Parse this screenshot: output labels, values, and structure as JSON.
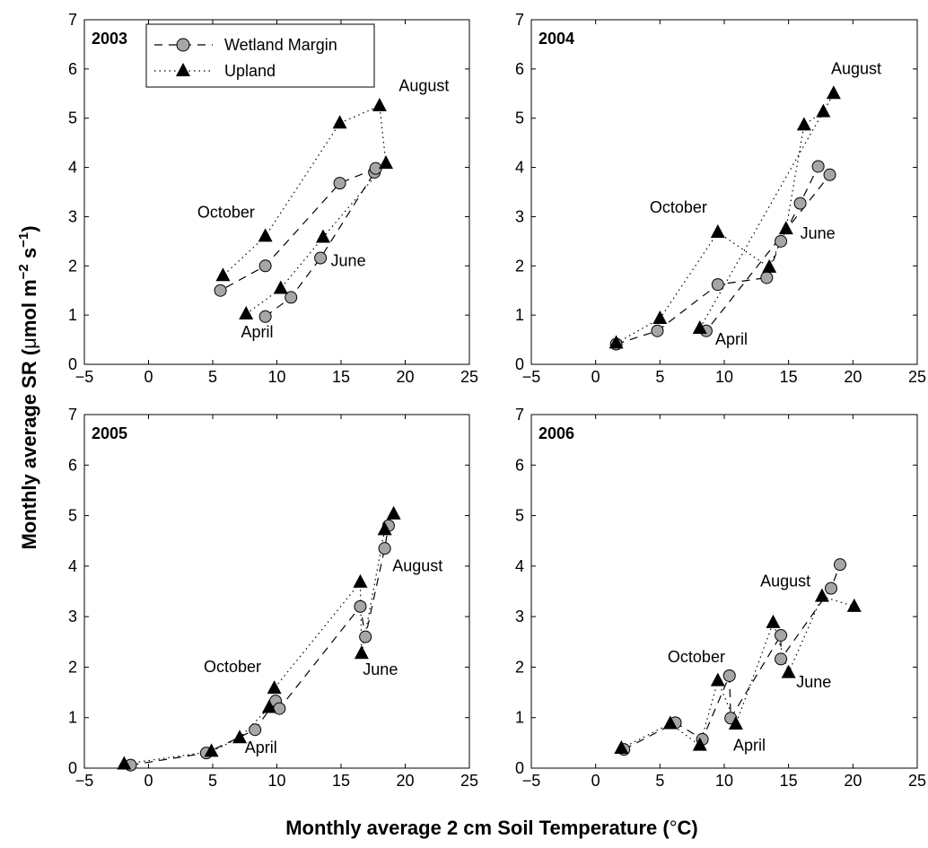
{
  "figure": {
    "ylabel_main": "Monthly average SR (",
    "ylabel_mu": "μ",
    "ylabel_mol": "mol m",
    "ylabel_exp1": "−2",
    "ylabel_s": " s",
    "ylabel_exp2": "−1",
    "ylabel_close": ")",
    "xlabel_main": "Monthly average 2 cm Soil Temperature (",
    "xlabel_deg": "°",
    "xlabel_unit": "C)",
    "legend": [
      {
        "name": "Wetland Margin",
        "marker": "circle",
        "line": "dashed"
      },
      {
        "name": "Upland",
        "marker": "triangle",
        "line": "dotted"
      }
    ],
    "colors": {
      "wetland_fill": "#a6a6a6",
      "upland_fill": "#000000",
      "line": "#000000"
    }
  },
  "chart_data": [
    {
      "type": "line",
      "panel": "2003",
      "xlim": [
        -5,
        25
      ],
      "ylim": [
        0,
        7
      ],
      "xticks": [
        -5,
        0,
        5,
        10,
        15,
        20,
        25
      ],
      "yticks": [
        0,
        1,
        2,
        3,
        4,
        5,
        6,
        7
      ],
      "series": [
        {
          "name": "Wetland Margin",
          "points": [
            [
              9.1,
              0.97
            ],
            [
              11.1,
              1.36
            ],
            [
              13.4,
              2.16
            ],
            [
              17.6,
              3.9
            ],
            [
              17.7,
              3.98
            ],
            [
              14.9,
              3.68
            ],
            [
              9.1,
              2.0
            ],
            [
              5.6,
              1.5
            ]
          ]
        },
        {
          "name": "Upland",
          "points": [
            [
              7.6,
              1.02
            ],
            [
              10.3,
              1.54
            ],
            [
              13.6,
              2.58
            ],
            [
              18.5,
              4.08
            ],
            [
              18.0,
              5.25
            ],
            [
              14.9,
              4.9
            ],
            [
              9.1,
              2.6
            ],
            [
              5.8,
              1.8
            ]
          ]
        }
      ],
      "annotations": [
        {
          "text": "August",
          "x": 19.5,
          "y": 5.55
        },
        {
          "text": "October",
          "x": 3.8,
          "y": 2.98
        },
        {
          "text": "June",
          "x": 14.2,
          "y": 2.0
        },
        {
          "text": "April",
          "x": 7.2,
          "y": 0.55
        }
      ]
    },
    {
      "type": "line",
      "panel": "2004",
      "xlim": [
        -5,
        25
      ],
      "ylim": [
        0,
        7
      ],
      "xticks": [
        -5,
        0,
        5,
        10,
        15,
        20,
        25
      ],
      "yticks": [
        0,
        1,
        2,
        3,
        4,
        5,
        6,
        7
      ],
      "series": [
        {
          "name": "Wetland Margin",
          "points": [
            [
              1.6,
              0.41
            ],
            [
              4.8,
              0.68
            ],
            [
              9.5,
              1.62
            ],
            [
              13.3,
              1.76
            ],
            [
              14.4,
              2.5
            ],
            [
              15.9,
              3.27
            ],
            [
              17.3,
              4.02
            ],
            [
              18.2,
              3.85
            ],
            [
              8.6,
              0.68
            ]
          ]
        },
        {
          "name": "Upland",
          "points": [
            [
              1.6,
              0.43
            ],
            [
              5.0,
              0.93
            ],
            [
              9.5,
              2.68
            ],
            [
              13.5,
              1.97
            ],
            [
              14.8,
              2.75
            ],
            [
              16.2,
              4.86
            ],
            [
              17.7,
              5.13
            ],
            [
              18.5,
              5.5
            ],
            [
              8.1,
              0.73
            ]
          ]
        }
      ],
      "annotations": [
        {
          "text": "August",
          "x": 18.3,
          "y": 5.9
        },
        {
          "text": "October",
          "x": 4.2,
          "y": 3.08
        },
        {
          "text": "June",
          "x": 15.9,
          "y": 2.55
        },
        {
          "text": "April",
          "x": 9.3,
          "y": 0.4
        }
      ]
    },
    {
      "type": "line",
      "panel": "2005",
      "xlim": [
        -5,
        25
      ],
      "ylim": [
        0,
        7
      ],
      "xticks": [
        -5,
        0,
        5,
        10,
        15,
        20,
        25
      ],
      "yticks": [
        0,
        1,
        2,
        3,
        4,
        5,
        6,
        7
      ],
      "series": [
        {
          "name": "Wetland Margin",
          "points": [
            [
              -1.4,
              0.06
            ],
            [
              4.5,
              0.3
            ],
            [
              8.3,
              0.76
            ],
            [
              9.9,
              1.33
            ],
            [
              10.2,
              1.18
            ],
            [
              16.5,
              3.2
            ],
            [
              16.9,
              2.6
            ],
            [
              18.4,
              4.35
            ],
            [
              18.7,
              4.8
            ]
          ]
        },
        {
          "name": "Upland",
          "points": [
            [
              -1.9,
              0.08
            ],
            [
              4.9,
              0.33
            ],
            [
              7.1,
              0.6
            ],
            [
              9.4,
              1.2
            ],
            [
              9.8,
              1.58
            ],
            [
              16.5,
              3.68
            ],
            [
              16.6,
              2.27
            ],
            [
              18.4,
              4.72
            ],
            [
              19.1,
              5.03
            ]
          ]
        }
      ],
      "annotations": [
        {
          "text": "August",
          "x": 19.0,
          "y": 3.9
        },
        {
          "text": "October",
          "x": 4.3,
          "y": 1.9
        },
        {
          "text": "June",
          "x": 16.7,
          "y": 1.85
        },
        {
          "text": "April",
          "x": 7.5,
          "y": 0.3
        }
      ]
    },
    {
      "type": "line",
      "panel": "2006",
      "xlim": [
        -5,
        25
      ],
      "ylim": [
        0,
        7
      ],
      "xticks": [
        -5,
        0,
        5,
        10,
        15,
        20,
        25
      ],
      "yticks": [
        0,
        1,
        2,
        3,
        4,
        5,
        6,
        7
      ],
      "series": [
        {
          "name": "Wetland Margin",
          "points": [
            [
              2.2,
              0.37
            ],
            [
              6.2,
              0.9
            ],
            [
              8.3,
              0.57
            ],
            [
              10.4,
              1.83
            ],
            [
              10.5,
              0.99
            ],
            [
              14.4,
              2.63
            ],
            [
              14.4,
              2.16
            ],
            [
              18.3,
              3.56
            ],
            [
              19.0,
              4.03
            ]
          ]
        },
        {
          "name": "Upland",
          "points": [
            [
              2.0,
              0.39
            ],
            [
              5.8,
              0.88
            ],
            [
              8.1,
              0.45
            ],
            [
              9.5,
              1.73
            ],
            [
              10.9,
              0.87
            ],
            [
              13.8,
              2.88
            ],
            [
              15.0,
              1.89
            ],
            [
              17.6,
              3.4
            ],
            [
              20.1,
              3.2
            ]
          ]
        }
      ],
      "annotations": [
        {
          "text": "August",
          "x": 12.8,
          "y": 3.6
        },
        {
          "text": "October",
          "x": 5.6,
          "y": 2.1
        },
        {
          "text": "June",
          "x": 15.6,
          "y": 1.6
        },
        {
          "text": "April",
          "x": 10.7,
          "y": 0.35
        }
      ]
    }
  ]
}
